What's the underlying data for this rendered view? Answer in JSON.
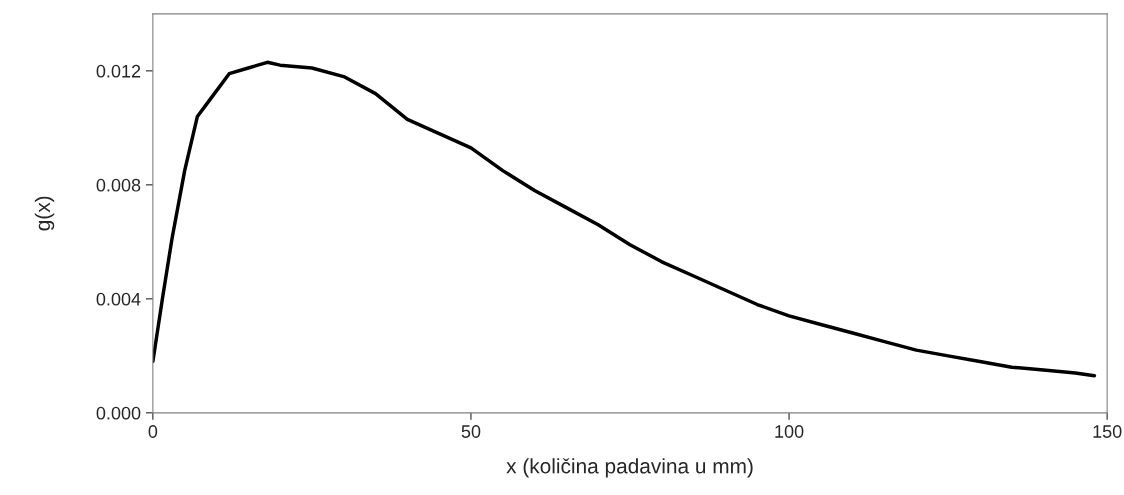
{
  "chart_data": {
    "type": "line",
    "xlabel": "x (količina padavina u mm)",
    "ylabel": "g(x)",
    "x": [
      0,
      1.5,
      3,
      5,
      7,
      9,
      12,
      15,
      18,
      20,
      25,
      30,
      35,
      40,
      45,
      50,
      55,
      60,
      65,
      70,
      75,
      80,
      85,
      90,
      95,
      100,
      105,
      110,
      115,
      120,
      125,
      130,
      135,
      140,
      145,
      148
    ],
    "series": [
      {
        "color": "#000000",
        "values": [
          0.0018,
          0.004,
          0.0061,
          0.0085,
          0.0104,
          0.011,
          0.0119,
          0.0121,
          0.0123,
          0.0122,
          0.0121,
          0.0118,
          0.0112,
          0.0103,
          0.0098,
          0.0093,
          0.0085,
          0.0078,
          0.0072,
          0.0066,
          0.0059,
          0.0053,
          0.0048,
          0.0043,
          0.0038,
          0.0034,
          0.0031,
          0.0028,
          0.0025,
          0.0022,
          0.002,
          0.0018,
          0.0016,
          0.0015,
          0.0014,
          0.0013
        ]
      }
    ],
    "xlim": [
      0,
      150
    ],
    "xticks": [
      0,
      50,
      100,
      150
    ],
    "ylim": [
      0,
      0.014
    ],
    "yticks": [
      {
        "value": 0,
        "label": "0.000"
      },
      {
        "value": 0.004,
        "label": "0.004"
      },
      {
        "value": 0.008,
        "label": "0.008"
      },
      {
        "value": 0.012,
        "label": "0.012"
      }
    ],
    "grid": false,
    "marker": "none",
    "line_style": "solid"
  }
}
